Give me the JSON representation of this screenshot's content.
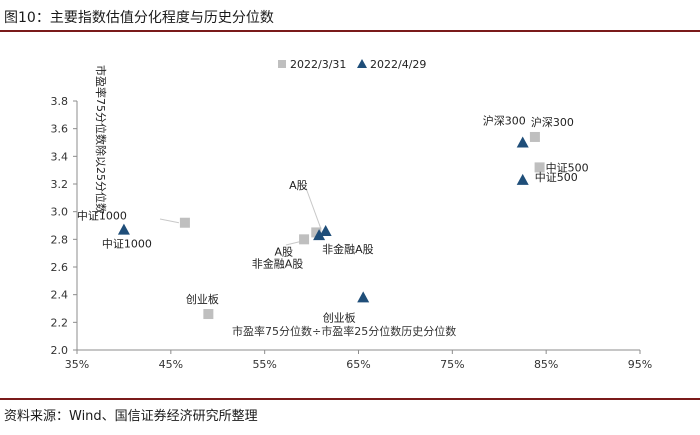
{
  "figure": {
    "title": "图10：主要指数估值分化程度与历史分位数",
    "source": "资料来源：Wind、国信证券经济研究所整理"
  },
  "chart_data": {
    "type": "scatter",
    "title": "",
    "xlabel": "市盈率75分位数÷市盈率25分位数历史分位数",
    "ylabel": "市盈率75分位数除以25分位数",
    "xlim": [
      0.35,
      0.95
    ],
    "ylim": [
      2.0,
      3.8
    ],
    "x_ticks": [
      0.35,
      0.45,
      0.55,
      0.65,
      0.75,
      0.85,
      0.95
    ],
    "x_tick_labels": [
      "35%",
      "45%",
      "55%",
      "65%",
      "75%",
      "85%",
      "95%"
    ],
    "y_ticks": [
      2.0,
      2.2,
      2.4,
      2.6,
      2.8,
      3.0,
      3.2,
      3.4,
      3.6,
      3.8
    ],
    "y_tick_labels": [
      "2.0",
      "2.2",
      "2.4",
      "2.6",
      "2.8",
      "3.0",
      "3.2",
      "3.4",
      "3.6",
      "3.8"
    ],
    "legend_position": "top-center",
    "series": [
      {
        "name": "2022/3/31",
        "marker": "square",
        "color": "#bfbfbf",
        "points": [
          {
            "label": "中证1000",
            "x": 0.465,
            "y": 2.92
          },
          {
            "label": "A股",
            "x": 0.592,
            "y": 2.8
          },
          {
            "label": "非金融A股",
            "x": 0.605,
            "y": 2.85
          },
          {
            "label": "创业板",
            "x": 0.49,
            "y": 2.26
          },
          {
            "label": "沪深300",
            "x": 0.838,
            "y": 3.54
          },
          {
            "label": "中证500",
            "x": 0.843,
            "y": 3.32
          }
        ]
      },
      {
        "name": "2022/4/29",
        "marker": "triangle",
        "color": "#1f4e79",
        "points": [
          {
            "label": "中证1000",
            "x": 0.4,
            "y": 2.87
          },
          {
            "label": "A股",
            "x": 0.615,
            "y": 2.86
          },
          {
            "label": "非金融A股",
            "x": 0.608,
            "y": 2.83
          },
          {
            "label": "创业板",
            "x": 0.655,
            "y": 2.38
          },
          {
            "label": "沪深300",
            "x": 0.825,
            "y": 3.5
          },
          {
            "label": "中证500",
            "x": 0.825,
            "y": 3.23
          }
        ]
      }
    ]
  }
}
